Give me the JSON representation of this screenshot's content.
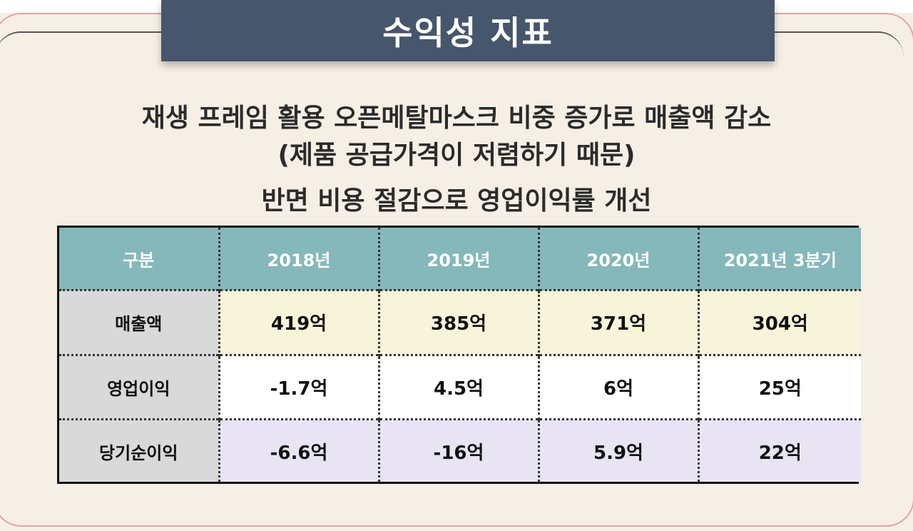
{
  "title": "수익성 지표",
  "subtitles": [
    "재생 프레임 활용 오픈메탈마스크 비중 증가로 매출액 감소",
    "(제품 공급가격이 저렴하기 때문)",
    "반면 비용 절감으로 영업이익률 개선"
  ],
  "table": {
    "headers": [
      "구분",
      "2018년",
      "2019년",
      "2020년",
      "2021년 3분기"
    ],
    "rows": [
      {
        "label": "매출액",
        "values": [
          "419억",
          "385억",
          "371억",
          "304억"
        ]
      },
      {
        "label": "영업이익",
        "values": [
          "-1.7억",
          "4.5억",
          "6억",
          "25억"
        ]
      },
      {
        "label": "당기순이익",
        "values": [
          "-6.6억",
          "-16억",
          "5.9억",
          "22억"
        ]
      }
    ]
  },
  "colors": {
    "banner": "#46566c",
    "header": "#85b8bb",
    "row_sales": "#f8f4da",
    "row_operating": "#ffffff",
    "row_net": "#e9e4f3",
    "label_cell": "#d9d9d9",
    "frame_border": "#e3a3a3"
  }
}
